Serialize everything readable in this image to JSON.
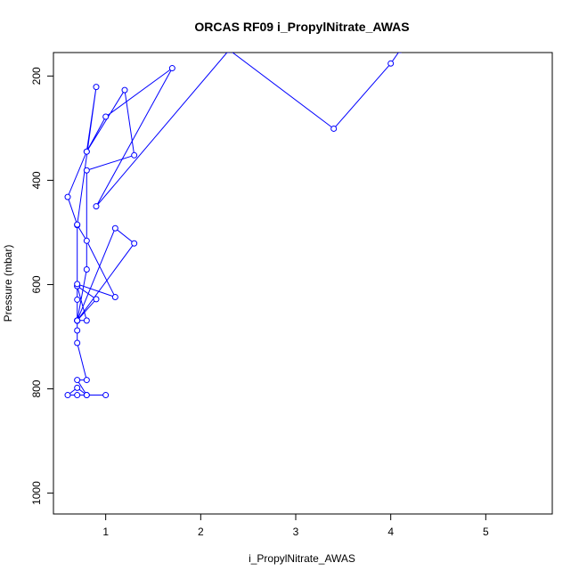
{
  "chart_data": {
    "type": "line",
    "title": "ORCAS RF09 i_PropylNitrate_AWAS",
    "xlabel": "i_PropylNitrate_AWAS",
    "ylabel": "Pressure (mbar)",
    "xlim": [
      0.45,
      5.7
    ],
    "ylim": [
      1040,
      155
    ],
    "y_reversed": true,
    "xticks": [
      1,
      2,
      3,
      4,
      5
    ],
    "yticks": [
      200,
      400,
      600,
      800,
      1000
    ],
    "grid": false,
    "series_color": "#0000ff",
    "series": [
      {
        "x": [
          1.0,
          0.8,
          0.7,
          0.6,
          0.7,
          0.8,
          0.7,
          0.8,
          0.7,
          0.7,
          0.7,
          0.7,
          0.8,
          0.7,
          0.7,
          0.9,
          0.7,
          0.7,
          0.7,
          1.1,
          0.8,
          0.7,
          0.7,
          0.7,
          1.1,
          1.3,
          0.7,
          0.8,
          0.8,
          1.3,
          1.2,
          0.8,
          0.9,
          0.7,
          0.6,
          0.8,
          1.0,
          1.7,
          0.9,
          2.3,
          3.4,
          4.0,
          4.1
        ],
        "y": [
          812,
          812,
          812,
          812,
          798,
          812,
          783,
          783,
          712,
          688,
          669,
          669,
          669,
          603,
          603,
          628,
          669,
          629,
          599,
          624,
          516,
          486,
          669,
          669,
          492,
          521,
          669,
          571,
          381,
          352,
          227,
          345,
          221,
          485,
          432,
          345,
          278,
          185,
          450,
          150,
          301,
          176,
          150
        ]
      }
    ]
  }
}
